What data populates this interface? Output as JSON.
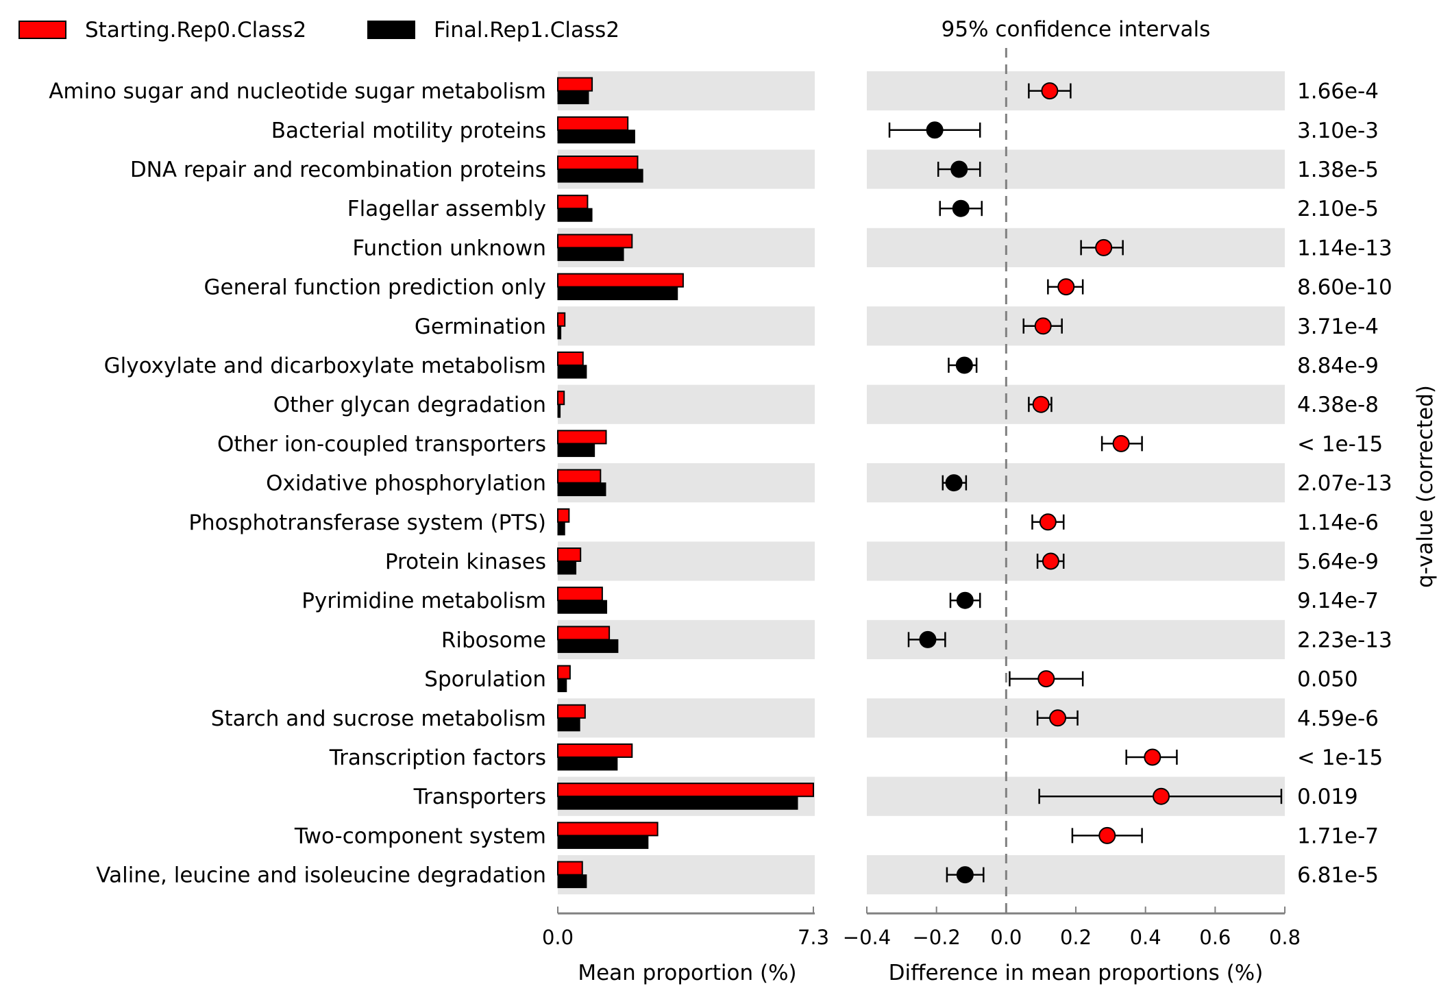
{
  "chart_data": {
    "type": "extended-error-bar",
    "legend": {
      "placement": "top-left",
      "entries": [
        {
          "name": "Starting.Rep0.Class2",
          "color": "#ff0000"
        },
        {
          "name": "Final.Rep1.Class2",
          "color": "#000000"
        }
      ]
    },
    "ci_title": "95% confidence intervals",
    "left_panel": {
      "xlabel": "Mean proportion (%)",
      "xlim": [
        0.0,
        7.3
      ],
      "ticks": [
        "0.0",
        "7.3"
      ]
    },
    "right_panel": {
      "xlabel": "Difference in mean proportions (%)",
      "xlim": [
        -0.4,
        0.8
      ],
      "ticks": [
        "−0.4",
        "−0.2",
        "0.0",
        "0.2",
        "0.4",
        "0.6",
        "0.8"
      ]
    },
    "qvalue_label": "q-value (corrected)",
    "colors": {
      "starting": "#ff0000",
      "final": "#000000",
      "band": "#e5e5e5"
    },
    "features": [
      {
        "name": "Amino sugar and nucleotide sugar metabolism",
        "start": 0.98,
        "final": 0.88,
        "diff": 0.125,
        "ci": [
          0.065,
          0.185
        ],
        "q": "1.66e-4"
      },
      {
        "name": "Bacterial motility proteins",
        "start": 2.0,
        "final": 2.2,
        "diff": -0.205,
        "ci": [
          -0.335,
          -0.075
        ],
        "q": "3.10e-3"
      },
      {
        "name": "DNA repair and recombination proteins",
        "start": 2.28,
        "final": 2.43,
        "diff": -0.135,
        "ci": [
          -0.195,
          -0.075
        ],
        "q": "1.38e-5"
      },
      {
        "name": "Flagellar assembly",
        "start": 0.85,
        "final": 0.98,
        "diff": -0.13,
        "ci": [
          -0.19,
          -0.07
        ],
        "q": "2.10e-5"
      },
      {
        "name": "Function unknown",
        "start": 2.12,
        "final": 1.88,
        "diff": 0.28,
        "ci": [
          0.215,
          0.335
        ],
        "q": "1.14e-13"
      },
      {
        "name": "General function prediction only",
        "start": 3.58,
        "final": 3.42,
        "diff": 0.172,
        "ci": [
          0.12,
          0.22
        ],
        "q": "8.60e-10"
      },
      {
        "name": "Germination",
        "start": 0.2,
        "final": 0.09,
        "diff": 0.106,
        "ci": [
          0.05,
          0.16
        ],
        "q": "3.71e-4"
      },
      {
        "name": "Glyoxylate and dicarboxylate metabolism",
        "start": 0.72,
        "final": 0.82,
        "diff": -0.12,
        "ci": [
          -0.165,
          -0.085
        ],
        "q": "8.84e-9"
      },
      {
        "name": "Other glycan degradation",
        "start": 0.18,
        "final": 0.07,
        "diff": 0.1,
        "ci": [
          0.065,
          0.13
        ],
        "q": "4.38e-8"
      },
      {
        "name": "Other ion-coupled transporters",
        "start": 1.38,
        "final": 1.05,
        "diff": 0.33,
        "ci": [
          0.275,
          0.39
        ],
        "q": "< 1e-15"
      },
      {
        "name": "Oxidative phosphorylation",
        "start": 1.22,
        "final": 1.37,
        "diff": -0.15,
        "ci": [
          -0.182,
          -0.115
        ],
        "q": "2.07e-13"
      },
      {
        "name": "Phosphotransferase system (PTS)",
        "start": 0.32,
        "final": 0.2,
        "diff": 0.12,
        "ci": [
          0.075,
          0.165
        ],
        "q": "1.14e-6"
      },
      {
        "name": "Protein kinases",
        "start": 0.65,
        "final": 0.52,
        "diff": 0.128,
        "ci": [
          0.09,
          0.165
        ],
        "q": "5.64e-9"
      },
      {
        "name": "Pyrimidine metabolism",
        "start": 1.27,
        "final": 1.4,
        "diff": -0.118,
        "ci": [
          -0.16,
          -0.075
        ],
        "q": "9.14e-7"
      },
      {
        "name": "Ribosome",
        "start": 1.47,
        "final": 1.72,
        "diff": -0.225,
        "ci": [
          -0.28,
          -0.175
        ],
        "q": "2.23e-13"
      },
      {
        "name": "Sporulation",
        "start": 0.35,
        "final": 0.25,
        "diff": 0.115,
        "ci": [
          0.01,
          0.22
        ],
        "q": "0.050"
      },
      {
        "name": "Starch and sucrose metabolism",
        "start": 0.78,
        "final": 0.63,
        "diff": 0.148,
        "ci": [
          0.09,
          0.205
        ],
        "q": "4.59e-6"
      },
      {
        "name": "Transcription factors",
        "start": 2.12,
        "final": 1.7,
        "diff": 0.42,
        "ci": [
          0.345,
          0.49
        ],
        "q": "< 1e-15"
      },
      {
        "name": "Transporters",
        "start": 7.3,
        "final": 6.85,
        "diff": 0.445,
        "ci": [
          0.095,
          0.79
        ],
        "q": "0.019"
      },
      {
        "name": "Two-component system",
        "start": 2.85,
        "final": 2.58,
        "diff": 0.29,
        "ci": [
          0.19,
          0.39
        ],
        "q": "1.71e-7"
      },
      {
        "name": "Valine, leucine and isoleucine degradation",
        "start": 0.7,
        "final": 0.82,
        "diff": -0.118,
        "ci": [
          -0.17,
          -0.065
        ],
        "q": "6.81e-5"
      }
    ]
  }
}
